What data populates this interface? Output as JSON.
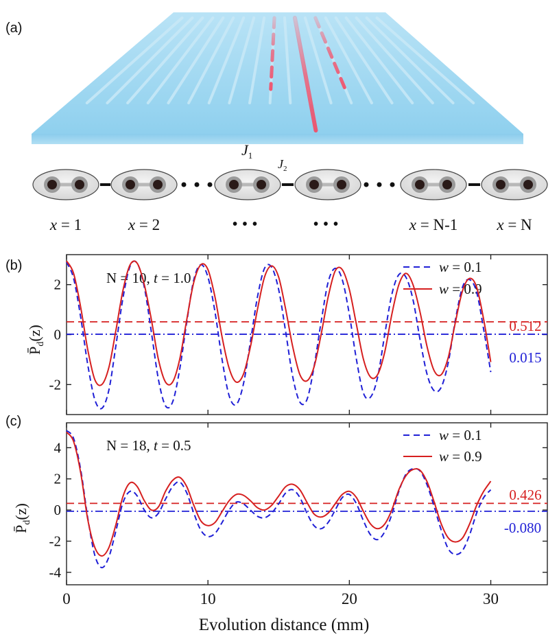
{
  "panel_a": {
    "label": "(a)",
    "j1_symbol": "J",
    "j1_subscript": "1",
    "j2_symbol": "J",
    "j2_subscript": "2",
    "site_labels": [
      {
        "var": "x",
        "value": " = 1"
      },
      {
        "var": "x",
        "value": " = 2"
      },
      {
        "var": "",
        "value": "•••"
      },
      {
        "var": "",
        "value": "•••"
      },
      {
        "var": "x",
        "value": " = N-1"
      },
      {
        "var": "x",
        "value": " = N"
      }
    ],
    "colors": {
      "slab": "#8fd0ee",
      "waveguide": "#c9e9f7",
      "excited": "#f0506a",
      "cell": "#e6e6e6",
      "site": "#2a1a18"
    }
  },
  "chart_data": [
    {
      "type": "line",
      "panel_label": "(b)",
      "annotation_prefix": "N = 10, ",
      "annotation_var": "t",
      "annotation_value": " = 1.0",
      "ylabel_main": "P̄",
      "ylabel_sub": "d",
      "ylabel_tail": "(z)",
      "xlabel": "",
      "xlim": [
        0,
        34
      ],
      "ylim": [
        -3.2,
        3.2
      ],
      "yticks": [
        -2,
        0,
        2
      ],
      "xticks": [
        0,
        10,
        20,
        30
      ],
      "show_xtick_labels": false,
      "legend": [
        {
          "var": "w",
          "value": " = 0.1",
          "style": "dashed",
          "color": "#1f1fd6"
        },
        {
          "var": "w",
          "value": " = 0.9",
          "style": "solid",
          "color": "#d61f1f"
        }
      ],
      "hlines": [
        {
          "y": 0.512,
          "label": "0.512",
          "style": "dashed",
          "color": "#d61f1f"
        },
        {
          "y": 0.015,
          "label": "0.015",
          "style": "dashdot",
          "color": "#1f1fd6"
        }
      ],
      "series": [
        {
          "name": "w = 0.1",
          "color": "#1f1fd6",
          "style": "dashed",
          "x": [
            0,
            0.5,
            1,
            1.5,
            2,
            2.5,
            3,
            3.5,
            4,
            4.5,
            5,
            5.5,
            6,
            6.5,
            7,
            7.5,
            8,
            8.5,
            9,
            9.5,
            10,
            10.5,
            11,
            11.5,
            12,
            12.5,
            13,
            13.5,
            14,
            14.5,
            15,
            15.5,
            16,
            16.5,
            17,
            17.5,
            18,
            18.5,
            19,
            19.5,
            20,
            20.5,
            21,
            21.5,
            22,
            22.5,
            23,
            23.5,
            24,
            24.5,
            25,
            25.5,
            26,
            26.5,
            27,
            27.5,
            28,
            28.5,
            29,
            29.5,
            30
          ],
          "y": [
            2.9,
            2.25,
            0.7,
            -1.2,
            -2.6,
            -2.95,
            -2.2,
            -0.4,
            1.5,
            2.75,
            2.85,
            1.9,
            0.1,
            -1.8,
            -2.85,
            -2.7,
            -1.4,
            0.5,
            2.2,
            2.8,
            2.3,
            0.9,
            -1.0,
            -2.45,
            -2.8,
            -2.0,
            -0.3,
            1.5,
            2.65,
            2.7,
            1.8,
            0.1,
            -1.7,
            -2.7,
            -2.6,
            -1.3,
            0.5,
            2.1,
            2.65,
            2.2,
            0.8,
            -1.0,
            -2.35,
            -2.5,
            -1.7,
            0.0,
            1.6,
            2.4,
            2.3,
            1.4,
            -0.2,
            -1.6,
            -2.25,
            -2.1,
            -1.1,
            0.6,
            1.9,
            2.2,
            1.7,
            0.2,
            -1.5
          ]
        },
        {
          "name": "w = 0.9",
          "color": "#d61f1f",
          "style": "solid",
          "x": [
            0,
            0.5,
            1,
            1.5,
            2,
            2.5,
            3,
            3.5,
            4,
            4.5,
            5,
            5.5,
            6,
            6.5,
            7,
            7.5,
            8,
            8.5,
            9,
            9.5,
            10,
            10.5,
            11,
            11.5,
            12,
            12.5,
            13,
            13.5,
            14,
            14.5,
            15,
            15.5,
            16,
            16.5,
            17,
            17.5,
            18,
            18.5,
            19,
            19.5,
            20,
            20.5,
            21,
            21.5,
            22,
            22.5,
            23,
            23.5,
            24,
            24.5,
            25,
            25.5,
            26,
            26.5,
            27,
            27.5,
            28,
            28.5,
            29,
            29.5,
            30
          ],
          "y": [
            2.95,
            2.45,
            1.1,
            -0.6,
            -1.8,
            -2.0,
            -1.3,
            0.2,
            1.8,
            2.8,
            2.85,
            2.0,
            0.6,
            -1.0,
            -1.9,
            -1.9,
            -1.0,
            0.6,
            2.1,
            2.8,
            2.6,
            1.5,
            -0.1,
            -1.35,
            -1.9,
            -1.6,
            -0.5,
            1.0,
            2.3,
            2.75,
            2.3,
            1.0,
            -0.5,
            -1.6,
            -1.85,
            -1.3,
            0.0,
            1.5,
            2.55,
            2.6,
            1.8,
            0.4,
            -1.0,
            -1.7,
            -1.6,
            -0.7,
            0.8,
            2.0,
            2.45,
            2.0,
            0.9,
            -0.5,
            -1.45,
            -1.6,
            -0.9,
            0.5,
            1.75,
            2.25,
            1.9,
            0.6,
            -1.1
          ]
        }
      ]
    },
    {
      "type": "line",
      "panel_label": "(c)",
      "annotation_prefix": "N = 18, ",
      "annotation_var": "t",
      "annotation_value": " = 0.5",
      "ylabel_main": "P̄",
      "ylabel_sub": "d",
      "ylabel_tail": "(z)",
      "xlabel": "Evolution distance (mm)",
      "xlim": [
        0,
        34
      ],
      "ylim": [
        -4.8,
        5.6
      ],
      "yticks": [
        -4,
        -2,
        0,
        2,
        4
      ],
      "xticks": [
        0,
        10,
        20,
        30
      ],
      "show_xtick_labels": true,
      "legend": [
        {
          "var": "w",
          "value": " = 0.1",
          "style": "dashed",
          "color": "#1f1fd6"
        },
        {
          "var": "w",
          "value": " = 0.9",
          "style": "solid",
          "color": "#d61f1f"
        }
      ],
      "hlines": [
        {
          "y": 0.426,
          "label": "0.426",
          "style": "dashed",
          "color": "#d61f1f"
        },
        {
          "y": -0.08,
          "label": "-0.080",
          "style": "dashdot",
          "color": "#1f1fd6"
        }
      ],
      "series": [
        {
          "name": "w = 0.1",
          "color": "#1f1fd6",
          "style": "dashed",
          "x": [
            0,
            0.5,
            1,
            1.5,
            2,
            2.5,
            3,
            3.5,
            4,
            4.5,
            5,
            5.5,
            6,
            6.5,
            7,
            7.5,
            8,
            8.5,
            9,
            9.5,
            10,
            10.5,
            11,
            11.5,
            12,
            12.5,
            13,
            13.5,
            14,
            14.5,
            15,
            15.5,
            16,
            16.5,
            17,
            17.5,
            18,
            18.5,
            19,
            19.5,
            20,
            20.5,
            21,
            21.5,
            22,
            22.5,
            23,
            23.5,
            24,
            24.5,
            25,
            25.5,
            26,
            26.5,
            27,
            27.5,
            28,
            28.5,
            29,
            29.5,
            30
          ],
          "y": [
            5.1,
            4.6,
            2.6,
            -0.5,
            -2.9,
            -3.7,
            -3.0,
            -1.3,
            0.5,
            1.2,
            0.9,
            0.0,
            -0.5,
            -0.2,
            0.7,
            1.5,
            1.8,
            1.1,
            -0.2,
            -1.3,
            -1.7,
            -1.5,
            -0.8,
            0.0,
            0.5,
            0.4,
            0.0,
            -0.4,
            -0.5,
            -0.2,
            0.4,
            1.1,
            1.3,
            0.8,
            -0.2,
            -1.0,
            -1.2,
            -0.8,
            0.0,
            0.8,
            1.0,
            0.4,
            -0.7,
            -1.6,
            -1.9,
            -1.4,
            -0.3,
            1.2,
            2.3,
            2.65,
            2.5,
            1.6,
            0.2,
            -1.3,
            -2.5,
            -2.85,
            -2.6,
            -1.6,
            -0.2,
            0.8,
            1.3
          ]
        },
        {
          "name": "w = 0.9",
          "color": "#d61f1f",
          "style": "solid",
          "x": [
            0,
            0.5,
            1,
            1.5,
            2,
            2.5,
            3,
            3.5,
            4,
            4.5,
            5,
            5.5,
            6,
            6.5,
            7,
            7.5,
            8,
            8.5,
            9,
            9.5,
            10,
            10.5,
            11,
            11.5,
            12,
            12.5,
            13,
            13.5,
            14,
            14.5,
            15,
            15.5,
            16,
            16.5,
            17,
            17.5,
            18,
            18.5,
            19,
            19.5,
            20,
            20.5,
            21,
            21.5,
            22,
            22.5,
            23,
            23.5,
            24,
            24.5,
            25,
            25.5,
            26,
            26.5,
            27,
            27.5,
            28,
            28.5,
            29,
            29.5,
            30
          ],
          "y": [
            5.0,
            4.4,
            2.4,
            -0.6,
            -2.4,
            -2.95,
            -2.4,
            -0.9,
            0.9,
            1.75,
            1.5,
            0.6,
            0.0,
            0.2,
            1.2,
            1.9,
            2.1,
            1.5,
            0.3,
            -0.7,
            -1.0,
            -0.8,
            -0.1,
            0.6,
            1.0,
            0.95,
            0.6,
            0.15,
            0.0,
            0.3,
            0.9,
            1.5,
            1.65,
            1.3,
            0.5,
            -0.25,
            -0.45,
            -0.2,
            0.4,
            1.0,
            1.2,
            0.8,
            -0.1,
            -0.9,
            -1.2,
            -0.9,
            0.0,
            1.3,
            2.2,
            2.6,
            2.55,
            1.8,
            0.5,
            -0.9,
            -1.8,
            -2.05,
            -1.8,
            -0.9,
            0.3,
            1.2,
            1.85
          ]
        }
      ]
    }
  ]
}
